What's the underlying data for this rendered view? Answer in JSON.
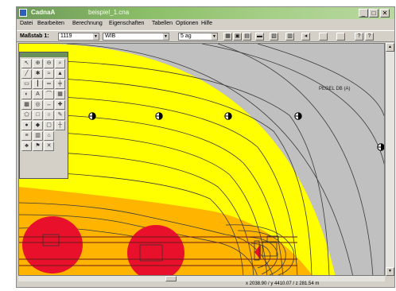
{
  "window": {
    "app_name": "CadnaA",
    "document_title": "beispiel_1.cna",
    "controls": {
      "minimize": "_",
      "maximize": "□",
      "close": "✕"
    }
  },
  "menu": [
    "Datei",
    "Bearbeiten",
    "Berechnung",
    "Eigenschaften",
    "Tabellen",
    "Optionen",
    "Hilfe"
  ],
  "toolbar": {
    "scale_label": "Maßstab 1:",
    "scale_value": "1119",
    "layer_value": "WIB",
    "variant_value": "5 ag",
    "buttons": [
      "grid-icon",
      "save-icon",
      "print-icon",
      "zoom-icon",
      "copy-icon",
      "table-icon",
      "arrow-icon",
      "help-icon"
    ]
  },
  "map": {
    "label": "PEGEL DB (A)",
    "colors": {
      "gray": "#c0c0c0",
      "yellow": "#ffff00",
      "orange": "#ffb400",
      "red": "#e8102a",
      "contour": "#3a3a3a"
    },
    "receivers": [
      "receiver-icon",
      "receiver-icon",
      "receiver-icon",
      "receiver-icon",
      "receiver-icon"
    ]
  },
  "palette": {
    "tools": [
      "pointer-icon",
      "zoom-in-icon",
      "zoom-out-icon",
      "zoom-fit-icon",
      "line-icon",
      "point-source-icon",
      "line-source-icon",
      "area-source-icon",
      "building-icon",
      "wall-icon",
      "road-icon",
      "rail-icon",
      "receiver-tool-icon",
      "text-icon",
      "bridge-icon",
      "barrier-icon",
      "grid-tool-icon",
      "contour-icon",
      "dimension-icon",
      "symbol-icon",
      "polygon-icon",
      "rectangle-icon",
      "circle-icon",
      "edit-icon",
      "node-icon",
      "color-icon",
      "lock-icon",
      "measure-icon"
    ]
  },
  "status": {
    "coords": "x 2038.90 / y 4410.07 / z 281.54 m"
  }
}
